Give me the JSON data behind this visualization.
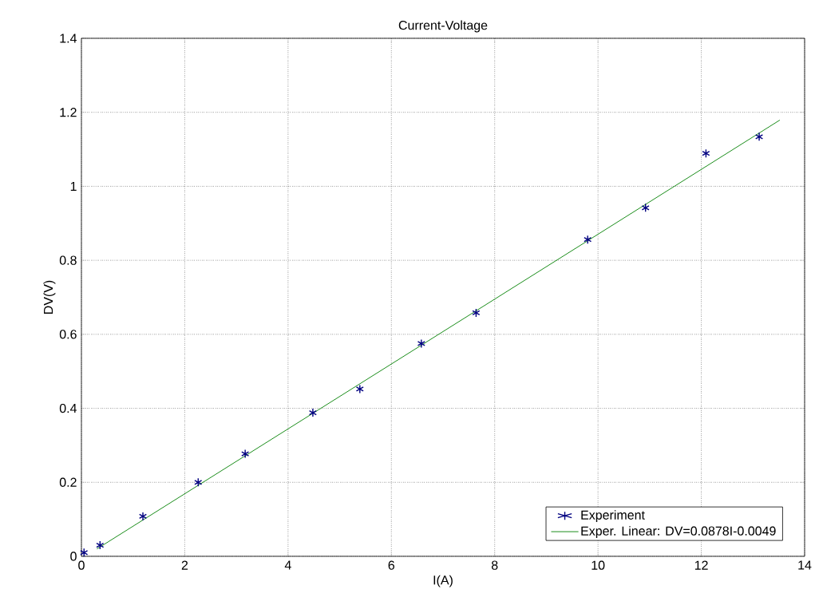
{
  "chart_data": {
    "type": "scatter",
    "title": "Current-Voltage",
    "xlabel": "I(A)",
    "ylabel": "DV(V)",
    "xlim": [
      0,
      14
    ],
    "ylim": [
      0,
      1.4
    ],
    "xticks": [
      0,
      2,
      4,
      6,
      8,
      10,
      12,
      14
    ],
    "yticks": [
      0,
      0.2,
      0.4,
      0.6,
      0.8,
      1,
      1.2,
      1.4
    ],
    "grid": true,
    "legend": "bottom right",
    "series": [
      {
        "name": "Experiment",
        "color": "#000080",
        "marker": "cross",
        "x": [
          0.05,
          0.36,
          1.19,
          2.26,
          3.17,
          4.48,
          5.39,
          6.58,
          7.64,
          9.8,
          10.92,
          12.09,
          13.12
        ],
        "values": [
          0.01,
          0.03,
          0.108,
          0.2,
          0.277,
          0.388,
          0.452,
          0.575,
          0.658,
          0.856,
          0.942,
          1.089,
          1.134
        ]
      },
      {
        "name": "Exper. Linear: DV=0.0878I-0.0049",
        "type": "line",
        "color": "#008000",
        "marker": "none",
        "line_style": "solid",
        "x": [
          0.3,
          13.52
        ],
        "values": [
          0.02,
          1.179
        ]
      }
    ]
  }
}
